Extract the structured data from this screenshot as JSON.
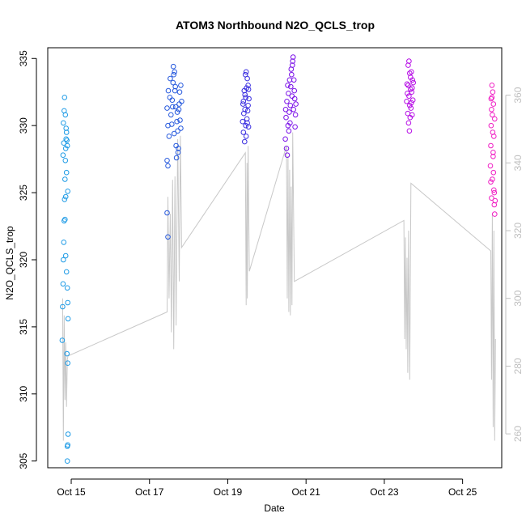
{
  "chart_data": {
    "type": "scatter",
    "title": "ATOM3 Northbound N2O_QCLS_trop",
    "xlabel": "Date",
    "ylabel": "N2O_QCLS_trop",
    "x_ticks": [
      "Oct 15",
      "Oct 17",
      "Oct 19",
      "Oct 21",
      "Oct 23",
      "Oct 25"
    ],
    "x_tick_days": [
      15,
      17,
      19,
      21,
      23,
      25
    ],
    "xlim_days": [
      14.4,
      26.0
    ],
    "ylim": [
      304.5,
      335.8
    ],
    "y_ticks": [
      305,
      310,
      315,
      320,
      325,
      330,
      335
    ],
    "y2lim": [
      250,
      374
    ],
    "y2_ticks": [
      260,
      280,
      300,
      320,
      340,
      360
    ],
    "y2_color": "#bfbfbf",
    "marker": "open-circle",
    "series": [
      {
        "color": "#1e9be6",
        "x_range_days": [
          14.75,
          14.95
        ],
        "points": [
          [
            14.77,
            314.0
          ],
          [
            14.78,
            316.5
          ],
          [
            14.79,
            318.2
          ],
          [
            14.8,
            320.0
          ],
          [
            14.81,
            321.3
          ],
          [
            14.82,
            322.9
          ],
          [
            14.83,
            324.5
          ],
          [
            14.84,
            326.0
          ],
          [
            14.85,
            327.4
          ],
          [
            14.86,
            328.3
          ],
          [
            14.87,
            329.0
          ],
          [
            14.88,
            329.5
          ],
          [
            14.8,
            330.2
          ],
          [
            14.82,
            331.1
          ],
          [
            14.83,
            332.1
          ],
          [
            14.85,
            330.8
          ],
          [
            14.87,
            329.8
          ],
          [
            14.89,
            328.9
          ],
          [
            14.9,
            328.5
          ],
          [
            14.91,
            325.1
          ],
          [
            14.84,
            323.0
          ],
          [
            14.86,
            320.3
          ],
          [
            14.88,
            319.1
          ],
          [
            14.9,
            317.9
          ],
          [
            14.91,
            316.8
          ],
          [
            14.89,
            313.0
          ],
          [
            14.91,
            312.3
          ],
          [
            14.92,
            315.6
          ],
          [
            14.9,
            306.1
          ],
          [
            14.91,
            306.2
          ],
          [
            14.9,
            305.0
          ],
          [
            14.92,
            307.0
          ],
          [
            14.86,
            324.7
          ],
          [
            14.88,
            326.5
          ],
          [
            14.79,
            327.8
          ],
          [
            14.81,
            328.7
          ]
        ]
      },
      {
        "color": "#2659dd",
        "x_range_days": [
          17.4,
          17.85
        ],
        "points": [
          [
            17.45,
            331.3
          ],
          [
            17.47,
            330.0
          ],
          [
            17.5,
            329.2
          ],
          [
            17.52,
            332.1
          ],
          [
            17.55,
            330.8
          ],
          [
            17.58,
            331.9
          ],
          [
            17.6,
            333.2
          ],
          [
            17.62,
            333.8
          ],
          [
            17.65,
            332.6
          ],
          [
            17.67,
            331.4
          ],
          [
            17.7,
            330.3
          ],
          [
            17.72,
            329.6
          ],
          [
            17.75,
            331.2
          ],
          [
            17.77,
            332.5
          ],
          [
            17.8,
            333.0
          ],
          [
            17.82,
            331.8
          ],
          [
            17.48,
            332.6
          ],
          [
            17.53,
            333.5
          ],
          [
            17.57,
            330.1
          ],
          [
            17.63,
            329.4
          ],
          [
            17.68,
            328.5
          ],
          [
            17.73,
            328.0
          ],
          [
            17.78,
            330.4
          ],
          [
            17.61,
            334.4
          ],
          [
            17.64,
            334.0
          ],
          [
            17.45,
            327.4
          ],
          [
            17.47,
            327.0
          ],
          [
            17.45,
            323.5
          ],
          [
            17.47,
            321.7
          ],
          [
            17.69,
            327.6
          ],
          [
            17.74,
            328.3
          ],
          [
            17.8,
            329.8
          ],
          [
            17.59,
            331.4
          ],
          [
            17.66,
            332.9
          ],
          [
            17.71,
            331.0
          ],
          [
            17.76,
            331.6
          ]
        ]
      },
      {
        "color": "#3a2ee0",
        "x_range_days": [
          19.35,
          19.55
        ],
        "points": [
          [
            19.38,
            330.3
          ],
          [
            19.4,
            331.8
          ],
          [
            19.42,
            332.6
          ],
          [
            19.44,
            331.2
          ],
          [
            19.46,
            330.0
          ],
          [
            19.48,
            332.8
          ],
          [
            19.5,
            333.5
          ],
          [
            19.52,
            333.0
          ],
          [
            19.54,
            332.0
          ],
          [
            19.4,
            329.5
          ],
          [
            19.43,
            328.8
          ],
          [
            19.47,
            329.2
          ],
          [
            19.49,
            330.5
          ],
          [
            19.51,
            331.1
          ],
          [
            19.53,
            329.9
          ],
          [
            19.45,
            333.8
          ],
          [
            19.47,
            334.0
          ],
          [
            19.41,
            330.9
          ],
          [
            19.44,
            332.3
          ],
          [
            19.52,
            331.5
          ],
          [
            19.39,
            331.6
          ],
          [
            19.46,
            332.1
          ],
          [
            19.5,
            330.2
          ],
          [
            19.53,
            332.7
          ]
        ]
      },
      {
        "color": "#7a10e8",
        "x_range_days": [
          20.45,
          20.75
        ],
        "points": [
          [
            20.47,
            329.0
          ],
          [
            20.49,
            330.6
          ],
          [
            20.51,
            331.8
          ],
          [
            20.53,
            333.0
          ],
          [
            20.55,
            332.4
          ],
          [
            20.57,
            331.0
          ],
          [
            20.59,
            330.2
          ],
          [
            20.61,
            332.9
          ],
          [
            20.63,
            333.8
          ],
          [
            20.65,
            334.5
          ],
          [
            20.67,
            335.1
          ],
          [
            20.69,
            333.4
          ],
          [
            20.71,
            332.0
          ],
          [
            20.73,
            330.8
          ],
          [
            20.5,
            328.3
          ],
          [
            20.52,
            327.8
          ],
          [
            20.56,
            329.6
          ],
          [
            20.6,
            331.5
          ],
          [
            20.64,
            332.2
          ],
          [
            20.68,
            331.2
          ],
          [
            20.72,
            329.9
          ],
          [
            20.48,
            331.2
          ],
          [
            20.54,
            330.0
          ],
          [
            20.62,
            334.2
          ],
          [
            20.66,
            334.8
          ],
          [
            20.7,
            332.6
          ],
          [
            20.58,
            333.4
          ],
          [
            20.74,
            331.6
          ]
        ]
      },
      {
        "color": "#b60de6",
        "x_range_days": [
          23.55,
          23.75
        ],
        "points": [
          [
            23.57,
            331.8
          ],
          [
            23.59,
            332.4
          ],
          [
            23.61,
            333.0
          ],
          [
            23.63,
            332.2
          ],
          [
            23.65,
            331.5
          ],
          [
            23.67,
            333.6
          ],
          [
            23.69,
            334.0
          ],
          [
            23.71,
            332.8
          ],
          [
            23.73,
            331.9
          ],
          [
            23.6,
            330.9
          ],
          [
            23.62,
            330.2
          ],
          [
            23.64,
            329.6
          ],
          [
            23.66,
            330.6
          ],
          [
            23.68,
            331.3
          ],
          [
            23.7,
            332.5
          ],
          [
            23.72,
            333.4
          ],
          [
            23.58,
            333.1
          ],
          [
            23.61,
            334.5
          ],
          [
            23.63,
            334.8
          ],
          [
            23.65,
            333.9
          ],
          [
            23.67,
            332.7
          ],
          [
            23.69,
            331.7
          ],
          [
            23.71,
            330.8
          ],
          [
            23.74,
            333.2
          ]
        ]
      },
      {
        "color": "#f01ec4",
        "x_range_days": [
          25.7,
          25.85
        ],
        "points": [
          [
            25.71,
            327.0
          ],
          [
            25.72,
            328.5
          ],
          [
            25.73,
            330.0
          ],
          [
            25.74,
            331.2
          ],
          [
            25.75,
            332.1
          ],
          [
            25.76,
            330.8
          ],
          [
            25.77,
            329.5
          ],
          [
            25.78,
            328.0
          ],
          [
            25.79,
            326.5
          ],
          [
            25.8,
            325.2
          ],
          [
            25.81,
            324.1
          ],
          [
            25.82,
            323.4
          ],
          [
            25.72,
            325.8
          ],
          [
            25.74,
            324.6
          ],
          [
            25.76,
            326.0
          ],
          [
            25.78,
            327.7
          ],
          [
            25.8,
            329.2
          ],
          [
            25.82,
            330.5
          ],
          [
            25.73,
            332.0
          ],
          [
            25.75,
            333.0
          ],
          [
            25.77,
            332.5
          ],
          [
            25.79,
            331.6
          ],
          [
            25.81,
            325.0
          ],
          [
            25.83,
            324.4
          ]
        ]
      }
    ],
    "secondary_line": {
      "color": "#c8c8c8",
      "axis": "right",
      "points": [
        [
          14.78,
          300
        ],
        [
          14.8,
          258
        ],
        [
          14.82,
          295
        ],
        [
          14.84,
          270
        ],
        [
          14.86,
          287
        ],
        [
          14.88,
          268
        ],
        [
          14.9,
          282
        ],
        [
          14.92,
          283
        ],
        [
          17.45,
          296
        ],
        [
          17.47,
          330
        ],
        [
          17.5,
          300
        ],
        [
          17.53,
          325
        ],
        [
          17.56,
          290
        ],
        [
          17.59,
          335
        ],
        [
          17.62,
          285
        ],
        [
          17.65,
          336
        ],
        [
          17.68,
          292
        ],
        [
          17.72,
          347
        ],
        [
          17.76,
          305
        ],
        [
          17.79,
          348
        ],
        [
          17.82,
          315
        ],
        [
          19.45,
          343
        ],
        [
          19.47,
          298
        ],
        [
          19.49,
          340
        ],
        [
          19.5,
          300
        ],
        [
          19.52,
          345
        ],
        [
          19.55,
          308
        ],
        [
          20.5,
          345
        ],
        [
          20.52,
          300
        ],
        [
          20.54,
          342
        ],
        [
          20.56,
          296
        ],
        [
          20.58,
          338
        ],
        [
          20.6,
          295
        ],
        [
          20.62,
          333
        ],
        [
          20.64,
          298
        ],
        [
          20.66,
          349
        ],
        [
          20.7,
          305
        ],
        [
          23.5,
          323
        ],
        [
          23.52,
          288
        ],
        [
          23.54,
          318
        ],
        [
          23.56,
          285
        ],
        [
          23.58,
          312
        ],
        [
          23.6,
          278
        ],
        [
          23.62,
          320
        ],
        [
          23.65,
          276
        ],
        [
          23.68,
          334
        ],
        [
          25.72,
          314
        ],
        [
          25.74,
          276
        ],
        [
          25.76,
          325
        ],
        [
          25.78,
          262
        ],
        [
          25.8,
          320
        ],
        [
          25.82,
          258
        ],
        [
          25.84,
          288
        ]
      ]
    }
  }
}
